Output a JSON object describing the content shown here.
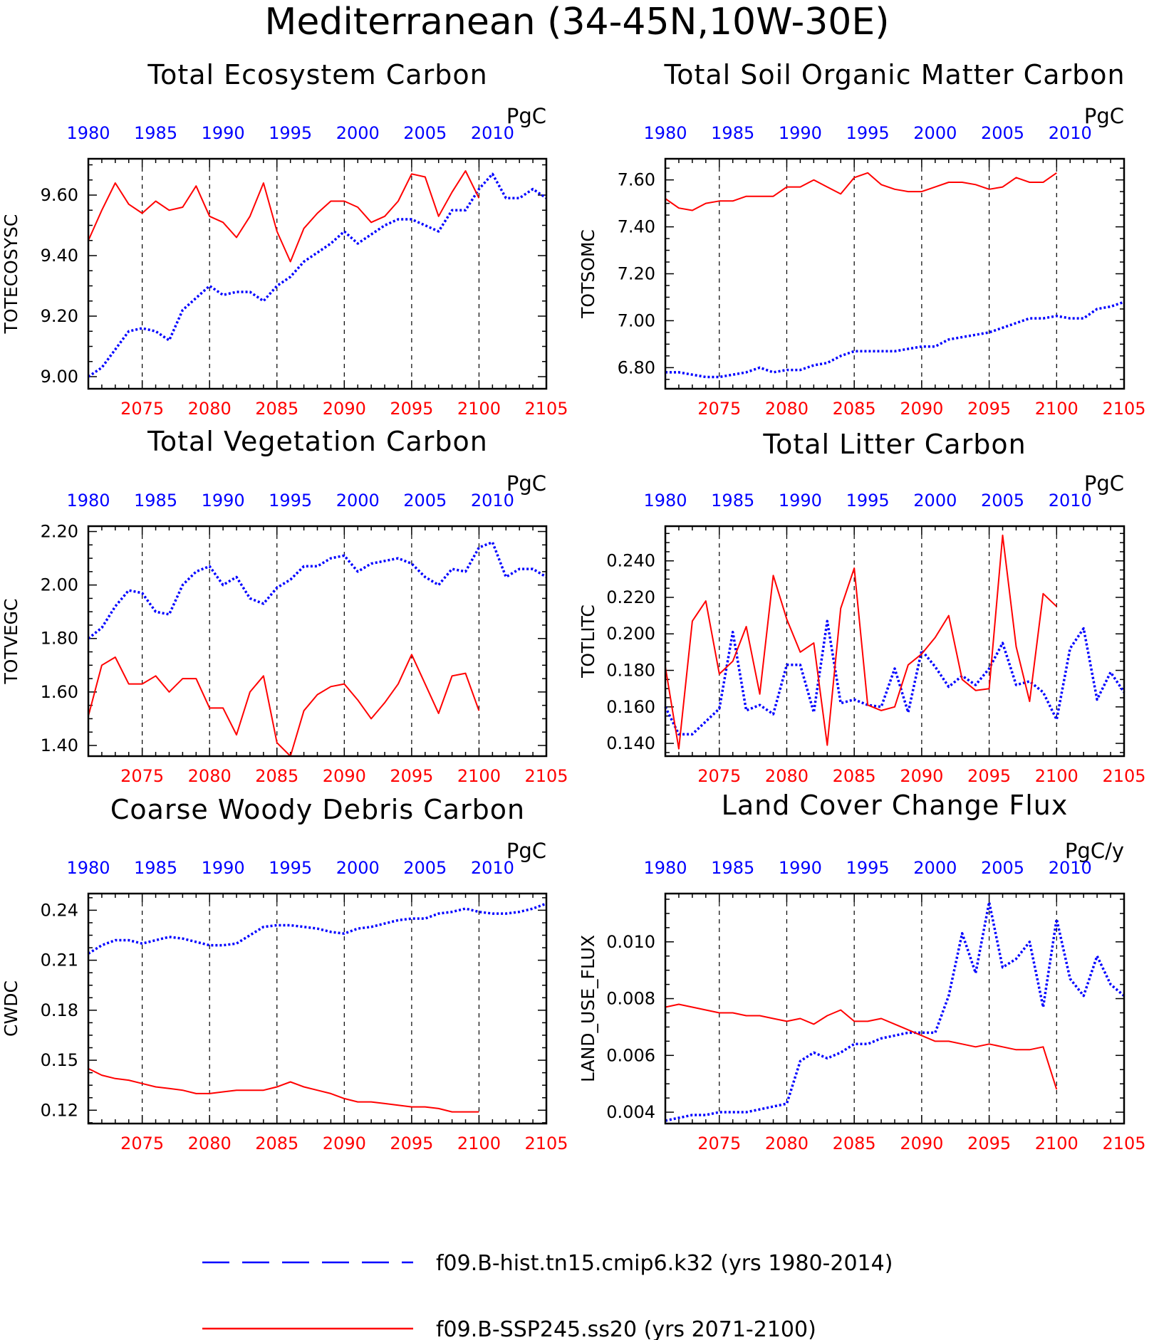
{
  "figure_title": "Mediterranean (34-45N,10W-30E)",
  "colors": {
    "hist": "#0000ff",
    "ssp": "#ff0000",
    "axis": "#000000"
  },
  "legend": [
    {
      "label": "f09.B-hist.tn15.cmip6.k32 (yrs 1980-2014)",
      "style": "dashed",
      "color": "#0000ff"
    },
    {
      "label": "f09.B-SSP245.ss20 (yrs 2071-2100)",
      "style": "solid",
      "color": "#ff0000"
    }
  ],
  "chart_data": [
    {
      "type": "line",
      "title": "Total Ecosystem Carbon",
      "ylabel": "TOTECOSYSC",
      "units": "PgC",
      "ylim": [
        8.96,
        9.72
      ],
      "yticks": [
        9.0,
        9.2,
        9.4,
        9.6
      ],
      "ytick_labels": [
        "9.00",
        "9.20",
        "9.40",
        "9.60"
      ],
      "x_bottom": {
        "range": [
          2071,
          2105
        ],
        "ticks": [
          2075,
          2080,
          2085,
          2090,
          2095,
          2100,
          2105
        ]
      },
      "x_top": {
        "range": [
          1980,
          2014
        ],
        "ticks": [
          1980,
          1985,
          1990,
          1995,
          2000,
          2005,
          2010
        ]
      },
      "series": [
        {
          "name": "f09.B-hist.tn15.cmip6.k32",
          "years": "1980-2014",
          "values": [
            9.0,
            9.03,
            9.09,
            9.15,
            9.16,
            9.15,
            9.12,
            9.22,
            9.26,
            9.3,
            9.27,
            9.28,
            9.28,
            9.25,
            9.3,
            9.33,
            9.38,
            9.41,
            9.44,
            9.48,
            9.44,
            9.47,
            9.5,
            9.52,
            9.52,
            9.5,
            9.48,
            9.55,
            9.55,
            9.62,
            9.67,
            9.59,
            9.59,
            9.62,
            9.59
          ]
        },
        {
          "name": "f09.B-SSP245.ss20",
          "years": "2071-2100",
          "values": [
            9.45,
            9.55,
            9.64,
            9.57,
            9.54,
            9.58,
            9.55,
            9.56,
            9.63,
            9.53,
            9.51,
            9.46,
            9.53,
            9.64,
            9.48,
            9.38,
            9.49,
            9.54,
            9.58,
            9.58,
            9.56,
            9.51,
            9.53,
            9.58,
            9.67,
            9.66,
            9.53,
            9.61,
            9.68,
            9.59
          ]
        }
      ]
    },
    {
      "type": "line",
      "title": "Total Soil Organic Matter Carbon",
      "ylabel": "TOTSOMC",
      "units": "PgC",
      "ylim": [
        6.71,
        7.69
      ],
      "yticks": [
        6.8,
        7.0,
        7.2,
        7.4,
        7.6
      ],
      "ytick_labels": [
        "6.80",
        "7.00",
        "7.20",
        "7.40",
        "7.60"
      ],
      "x_bottom": {
        "range": [
          2071,
          2105
        ],
        "ticks": [
          2075,
          2080,
          2085,
          2090,
          2095,
          2100,
          2105
        ]
      },
      "x_top": {
        "range": [
          1980,
          2014
        ],
        "ticks": [
          1980,
          1985,
          1990,
          1995,
          2000,
          2005,
          2010
        ]
      },
      "series": [
        {
          "name": "f09.B-hist.tn15.cmip6.k32",
          "years": "1980-2014",
          "values": [
            6.78,
            6.78,
            6.77,
            6.76,
            6.76,
            6.77,
            6.78,
            6.8,
            6.78,
            6.79,
            6.79,
            6.81,
            6.82,
            6.85,
            6.87,
            6.87,
            6.87,
            6.87,
            6.88,
            6.89,
            6.89,
            6.92,
            6.93,
            6.94,
            6.95,
            6.97,
            6.99,
            7.01,
            7.01,
            7.02,
            7.01,
            7.01,
            7.05,
            7.06,
            7.08
          ]
        },
        {
          "name": "f09.B-SSP245.ss20",
          "years": "2071-2100",
          "values": [
            7.52,
            7.48,
            7.47,
            7.5,
            7.51,
            7.51,
            7.53,
            7.53,
            7.53,
            7.57,
            7.57,
            7.6,
            7.57,
            7.54,
            7.61,
            7.63,
            7.58,
            7.56,
            7.55,
            7.55,
            7.57,
            7.59,
            7.59,
            7.58,
            7.56,
            7.57,
            7.61,
            7.59,
            7.59,
            7.63
          ]
        }
      ]
    },
    {
      "type": "line",
      "title": "Total Vegetation Carbon",
      "ylabel": "TOTVEGC",
      "units": "PgC",
      "ylim": [
        1.36,
        2.22
      ],
      "yticks": [
        1.4,
        1.6,
        1.8,
        2.0,
        2.2
      ],
      "ytick_labels": [
        "1.40",
        "1.60",
        "1.80",
        "2.00",
        "2.20"
      ],
      "x_bottom": {
        "range": [
          2071,
          2105
        ],
        "ticks": [
          2075,
          2080,
          2085,
          2090,
          2095,
          2100,
          2105
        ]
      },
      "x_top": {
        "range": [
          1980,
          2014
        ],
        "ticks": [
          1980,
          1985,
          1990,
          1995,
          2000,
          2005,
          2010
        ]
      },
      "series": [
        {
          "name": "f09.B-hist.tn15.cmip6.k32",
          "years": "1980-2014",
          "values": [
            1.8,
            1.84,
            1.92,
            1.98,
            1.97,
            1.9,
            1.89,
            2.0,
            2.05,
            2.07,
            2.0,
            2.03,
            1.95,
            1.93,
            1.99,
            2.02,
            2.07,
            2.07,
            2.1,
            2.11,
            2.05,
            2.08,
            2.09,
            2.1,
            2.08,
            2.03,
            2.0,
            2.06,
            2.05,
            2.14,
            2.16,
            2.03,
            2.06,
            2.06,
            2.03
          ]
        },
        {
          "name": "f09.B-SSP245.ss20",
          "years": "2071-2100",
          "values": [
            1.51,
            1.7,
            1.73,
            1.63,
            1.63,
            1.66,
            1.6,
            1.65,
            1.65,
            1.54,
            1.54,
            1.44,
            1.6,
            1.66,
            1.41,
            1.36,
            1.53,
            1.59,
            1.62,
            1.63,
            1.57,
            1.5,
            1.56,
            1.63,
            1.74,
            1.63,
            1.52,
            1.66,
            1.67,
            1.53
          ]
        }
      ]
    },
    {
      "type": "line",
      "title": "Total Litter Carbon",
      "ylabel": "TOTLITC",
      "units": "PgC",
      "ylim": [
        0.133,
        0.259
      ],
      "yticks": [
        0.14,
        0.16,
        0.18,
        0.2,
        0.22,
        0.24
      ],
      "ytick_labels": [
        "0.140",
        "0.160",
        "0.180",
        "0.200",
        "0.220",
        "0.240"
      ],
      "x_bottom": {
        "range": [
          2071,
          2105
        ],
        "ticks": [
          2075,
          2080,
          2085,
          2090,
          2095,
          2100,
          2105
        ]
      },
      "x_top": {
        "range": [
          1980,
          2014
        ],
        "ticks": [
          1980,
          1985,
          1990,
          1995,
          2000,
          2005,
          2010
        ]
      },
      "series": [
        {
          "name": "f09.B-hist.tn15.cmip6.k32",
          "years": "1980-2014",
          "values": [
            0.16,
            0.145,
            0.145,
            0.152,
            0.159,
            0.201,
            0.158,
            0.161,
            0.156,
            0.183,
            0.183,
            0.157,
            0.207,
            0.162,
            0.164,
            0.161,
            0.16,
            0.181,
            0.157,
            0.191,
            0.182,
            0.171,
            0.177,
            0.172,
            0.181,
            0.195,
            0.172,
            0.174,
            0.168,
            0.153,
            0.192,
            0.203,
            0.164,
            0.179,
            0.168
          ]
        },
        {
          "name": "f09.B-SSP245.ss20",
          "years": "2071-2100",
          "values": [
            0.182,
            0.137,
            0.207,
            0.218,
            0.178,
            0.185,
            0.204,
            0.167,
            0.232,
            0.208,
            0.19,
            0.195,
            0.139,
            0.214,
            0.236,
            0.161,
            0.158,
            0.16,
            0.183,
            0.189,
            0.198,
            0.21,
            0.175,
            0.169,
            0.17,
            0.254,
            0.193,
            0.163,
            0.222,
            0.215
          ]
        }
      ]
    },
    {
      "type": "line",
      "title": "Coarse Woody Debris Carbon",
      "ylabel": "CWDC",
      "units": "PgC",
      "ylim": [
        0.112,
        0.25
      ],
      "yticks": [
        0.12,
        0.15,
        0.18,
        0.21,
        0.24
      ],
      "ytick_labels": [
        "0.12",
        "0.15",
        "0.18",
        "0.21",
        "0.24"
      ],
      "x_bottom": {
        "range": [
          2071,
          2105
        ],
        "ticks": [
          2075,
          2080,
          2085,
          2090,
          2095,
          2100,
          2105
        ]
      },
      "x_top": {
        "range": [
          1980,
          2014
        ],
        "ticks": [
          1980,
          1985,
          1990,
          1995,
          2000,
          2005,
          2010
        ]
      },
      "series": [
        {
          "name": "f09.B-hist.tn15.cmip6.k32",
          "years": "1980-2014",
          "values": [
            0.214,
            0.219,
            0.222,
            0.222,
            0.22,
            0.222,
            0.224,
            0.223,
            0.221,
            0.219,
            0.219,
            0.22,
            0.225,
            0.23,
            0.231,
            0.231,
            0.23,
            0.229,
            0.227,
            0.226,
            0.229,
            0.23,
            0.232,
            0.234,
            0.235,
            0.235,
            0.238,
            0.239,
            0.241,
            0.239,
            0.238,
            0.238,
            0.239,
            0.241,
            0.244
          ]
        },
        {
          "name": "f09.B-SSP245.ss20",
          "years": "2071-2100",
          "values": [
            0.145,
            0.141,
            0.139,
            0.138,
            0.136,
            0.134,
            0.133,
            0.132,
            0.13,
            0.13,
            0.131,
            0.132,
            0.132,
            0.132,
            0.134,
            0.137,
            0.134,
            0.132,
            0.13,
            0.127,
            0.125,
            0.125,
            0.124,
            0.123,
            0.122,
            0.122,
            0.121,
            0.119,
            0.119,
            0.119
          ]
        }
      ]
    },
    {
      "type": "line",
      "title": "Land Cover Change Flux",
      "ylabel": "LAND_USE_FLUX",
      "units": "PgC/y",
      "ylim": [
        0.0036,
        0.0117
      ],
      "yticks": [
        0.004,
        0.006,
        0.008,
        0.01
      ],
      "ytick_labels": [
        "0.004",
        "0.006",
        "0.008",
        "0.010"
      ],
      "x_bottom": {
        "range": [
          2071,
          2105
        ],
        "ticks": [
          2075,
          2080,
          2085,
          2090,
          2095,
          2100,
          2105
        ]
      },
      "x_top": {
        "range": [
          1980,
          2014
        ],
        "ticks": [
          1980,
          1985,
          1990,
          1995,
          2000,
          2005,
          2010
        ]
      },
      "series": [
        {
          "name": "f09.B-hist.tn15.cmip6.k32",
          "years": "1980-2014",
          "values": [
            0.0037,
            0.0038,
            0.0039,
            0.0039,
            0.004,
            0.004,
            0.004,
            0.0041,
            0.0042,
            0.0043,
            0.0058,
            0.0061,
            0.0059,
            0.0061,
            0.0064,
            0.0064,
            0.0066,
            0.0067,
            0.0068,
            0.0068,
            0.0068,
            0.0081,
            0.0103,
            0.0089,
            0.0114,
            0.0091,
            0.0094,
            0.01,
            0.0077,
            0.0108,
            0.0087,
            0.0081,
            0.0095,
            0.0085,
            0.0081
          ]
        },
        {
          "name": "f09.B-SSP245.ss20",
          "years": "2071-2100",
          "values": [
            0.0077,
            0.0078,
            0.0077,
            0.0076,
            0.0075,
            0.0075,
            0.0074,
            0.0074,
            0.0073,
            0.0072,
            0.0073,
            0.0071,
            0.0074,
            0.0076,
            0.0072,
            0.0072,
            0.0073,
            0.0071,
            0.0069,
            0.0067,
            0.0065,
            0.0065,
            0.0064,
            0.0063,
            0.0064,
            0.0063,
            0.0062,
            0.0062,
            0.0063,
            0.0048
          ]
        }
      ]
    }
  ]
}
